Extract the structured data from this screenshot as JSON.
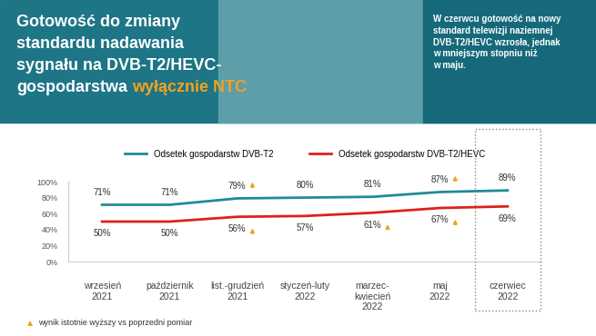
{
  "chart_data": {
    "type": "line",
    "title": "Gotowość do zmiany\nstandardu nadawania\nsygnału na DVB-T2/HEVC-\ngospodarstwa",
    "title_highlight": "wyłącznie NTC",
    "subtitle": "W czerwcu gotowość na nowy\nstandard telewizji naziemnej\nDVB-T2/HEVC wzrosła, jednak\nw mniejszym stopniu niż\nw maju.",
    "footnote": "wynik istotnie wyższy vs poprzedni pomiar",
    "categories": [
      "wrzesień\n2021",
      "październik\n2021",
      "list.-grudzień\n2021",
      "styczeń-luty\n2022",
      "marzec-\nkwiecień\n2022",
      "maj\n2022",
      "czerwiec\n2022"
    ],
    "series": [
      {
        "name": "Odsetek gospodarstw DVB-T2",
        "color": "#1f8b99",
        "values": [
          71,
          71,
          79,
          80,
          81,
          87,
          89
        ],
        "value_labels": [
          "71%",
          "71%",
          "79%",
          "80%",
          "81%",
          "87%",
          "89%"
        ],
        "significant": [
          false,
          false,
          true,
          false,
          false,
          true,
          false
        ]
      },
      {
        "name": "Odsetek gospodarstw DVB-T2/HEVC",
        "color": "#e0201b",
        "values": [
          50,
          50,
          56,
          57,
          61,
          67,
          69
        ],
        "value_labels": [
          "50%",
          "50%",
          "56%",
          "57%",
          "61%",
          "67%",
          "69%"
        ],
        "significant": [
          false,
          false,
          true,
          false,
          true,
          true,
          false
        ]
      }
    ],
    "ylim": [
      0,
      100
    ],
    "yticks": [
      {
        "value": 0,
        "label": "0%"
      },
      {
        "value": 20,
        "label": "20%"
      },
      {
        "value": 40,
        "label": "40%"
      },
      {
        "value": 60,
        "label": "60%"
      },
      {
        "value": 80,
        "label": "80%"
      },
      {
        "value": 100,
        "label": "100%"
      }
    ],
    "data_labels": true,
    "legend": "upper center",
    "grid": false
  }
}
